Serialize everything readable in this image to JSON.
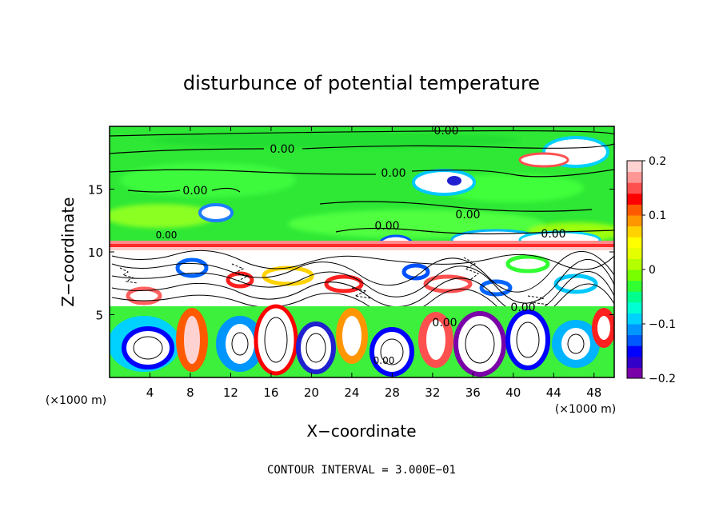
{
  "chart_data": {
    "type": "heatmap",
    "title": "disturbunce of potential temperature",
    "xlabel": "X−coordinate",
    "ylabel": "Z−coordinate",
    "x_unit_left": "(×1000 m)",
    "x_unit_right": "(×1000 m)",
    "footer": "CONTOUR INTERVAL = 3.000E−01",
    "xlim": [
      0,
      50
    ],
    "ylim": [
      0,
      20
    ],
    "x_ticks": [
      "4",
      "8",
      "12",
      "16",
      "20",
      "24",
      "28",
      "32",
      "36",
      "40",
      "44",
      "48"
    ],
    "y_ticks": [
      "5",
      "10",
      "15"
    ],
    "colorbar": {
      "range": [
        -0.2,
        0.2
      ],
      "tick_labels": [
        "0.2",
        "0.1",
        "0",
        "−0.1",
        "−0.2"
      ],
      "colors": [
        "#7a00a8",
        "#3200c8",
        "#0000ff",
        "#0058ff",
        "#0096ff",
        "#00d2ff",
        "#00ffd2",
        "#00ff8c",
        "#32ff32",
        "#78ff00",
        "#b4ff00",
        "#e6ff00",
        "#ffff00",
        "#ffd200",
        "#ff9600",
        "#ff5a00",
        "#ff0000",
        "#ff5050",
        "#ff9696",
        "#ffd2d2"
      ]
    },
    "contour_labels": [
      "0.00",
      "0.00",
      "0.00",
      "0.00",
      "0.00",
      "0.00",
      "0.00",
      "0.00",
      "0.00",
      "0.00",
      "0.00"
    ]
  }
}
